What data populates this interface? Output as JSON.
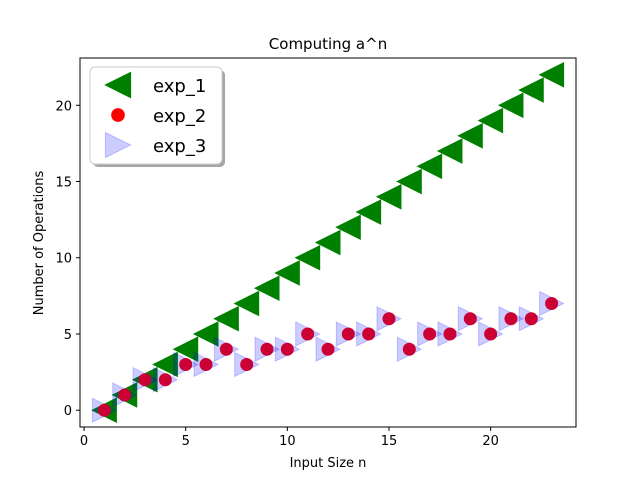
{
  "chart_data": {
    "type": "scatter",
    "title": "Computing a^n",
    "xlabel": "Input Size n",
    "ylabel": "Number of Operations",
    "xlim": [
      -0.2,
      24.2
    ],
    "ylim": [
      -1.1,
      23.1
    ],
    "xticks": [
      0,
      5,
      10,
      15,
      20
    ],
    "yticks": [
      0,
      5,
      10,
      15,
      20
    ],
    "grid": false,
    "legend_position": "top-left",
    "series": [
      {
        "name": "exp_1",
        "marker": "triangle-left",
        "color": "#008000",
        "x": [
          1,
          2,
          3,
          4,
          5,
          6,
          7,
          8,
          9,
          10,
          11,
          12,
          13,
          14,
          15,
          16,
          17,
          18,
          19,
          20,
          21,
          22,
          23
        ],
        "y": [
          0,
          1,
          2,
          3,
          4,
          5,
          6,
          7,
          8,
          9,
          10,
          11,
          12,
          13,
          14,
          15,
          16,
          17,
          18,
          19,
          20,
          21,
          22
        ]
      },
      {
        "name": "exp_2",
        "marker": "circle",
        "color": "#ff0000",
        "x": [
          1,
          2,
          3,
          4,
          5,
          6,
          7,
          8,
          9,
          10,
          11,
          12,
          13,
          14,
          15,
          16,
          17,
          18,
          19,
          20,
          21,
          22,
          23
        ],
        "y": [
          0,
          1,
          2,
          2,
          3,
          3,
          4,
          3,
          4,
          4,
          5,
          4,
          5,
          5,
          6,
          4,
          5,
          5,
          6,
          5,
          6,
          6,
          7
        ]
      },
      {
        "name": "exp_3",
        "marker": "triangle-right",
        "color": "#0000ff",
        "alpha": 0.2,
        "x": [
          1,
          2,
          3,
          4,
          5,
          6,
          7,
          8,
          9,
          10,
          11,
          12,
          13,
          14,
          15,
          16,
          17,
          18,
          19,
          20,
          21,
          22,
          23
        ],
        "y": [
          0,
          1,
          2,
          2,
          3,
          3,
          4,
          3,
          4,
          4,
          5,
          4,
          5,
          5,
          6,
          4,
          5,
          5,
          6,
          5,
          6,
          6,
          7
        ]
      }
    ]
  }
}
